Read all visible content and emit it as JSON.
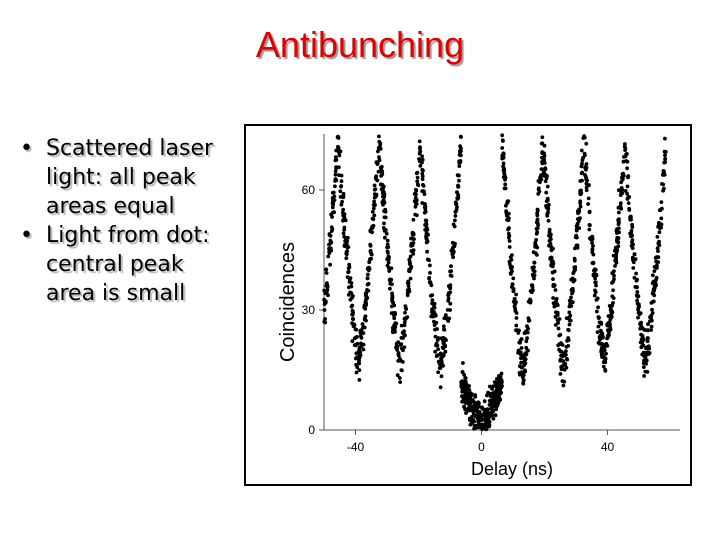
{
  "title": "Antibunching",
  "bullets": [
    {
      "text": "Scattered laser light: all peak areas equal"
    },
    {
      "text": "Light from dot:  central peak area is small"
    }
  ],
  "chart_data": {
    "type": "scatter",
    "xlabel": "Delay (ns)",
    "ylabel": "Coincidences",
    "xlim": [
      -50,
      63
    ],
    "ylim": [
      0,
      74
    ],
    "xticks": [
      -40,
      0,
      40
    ],
    "yticks": [
      0,
      30,
      60
    ],
    "grid": false,
    "marker_color": "#000000",
    "peak_period_ns": 13,
    "peaks": [
      {
        "delay": -52,
        "max": 73,
        "min": 18
      },
      {
        "delay": -39,
        "max": 72,
        "min": 18
      },
      {
        "delay": -26,
        "max": 72,
        "min": 17
      },
      {
        "delay": -13,
        "max": 72,
        "min": 15
      },
      {
        "delay": 0,
        "max": 12,
        "min": 2
      },
      {
        "delay": 13,
        "max": 72,
        "min": 15
      },
      {
        "delay": 26,
        "max": 72,
        "min": 16
      },
      {
        "delay": 39,
        "max": 72,
        "min": 18
      },
      {
        "delay": 52,
        "max": 70,
        "min": 18
      }
    ]
  }
}
